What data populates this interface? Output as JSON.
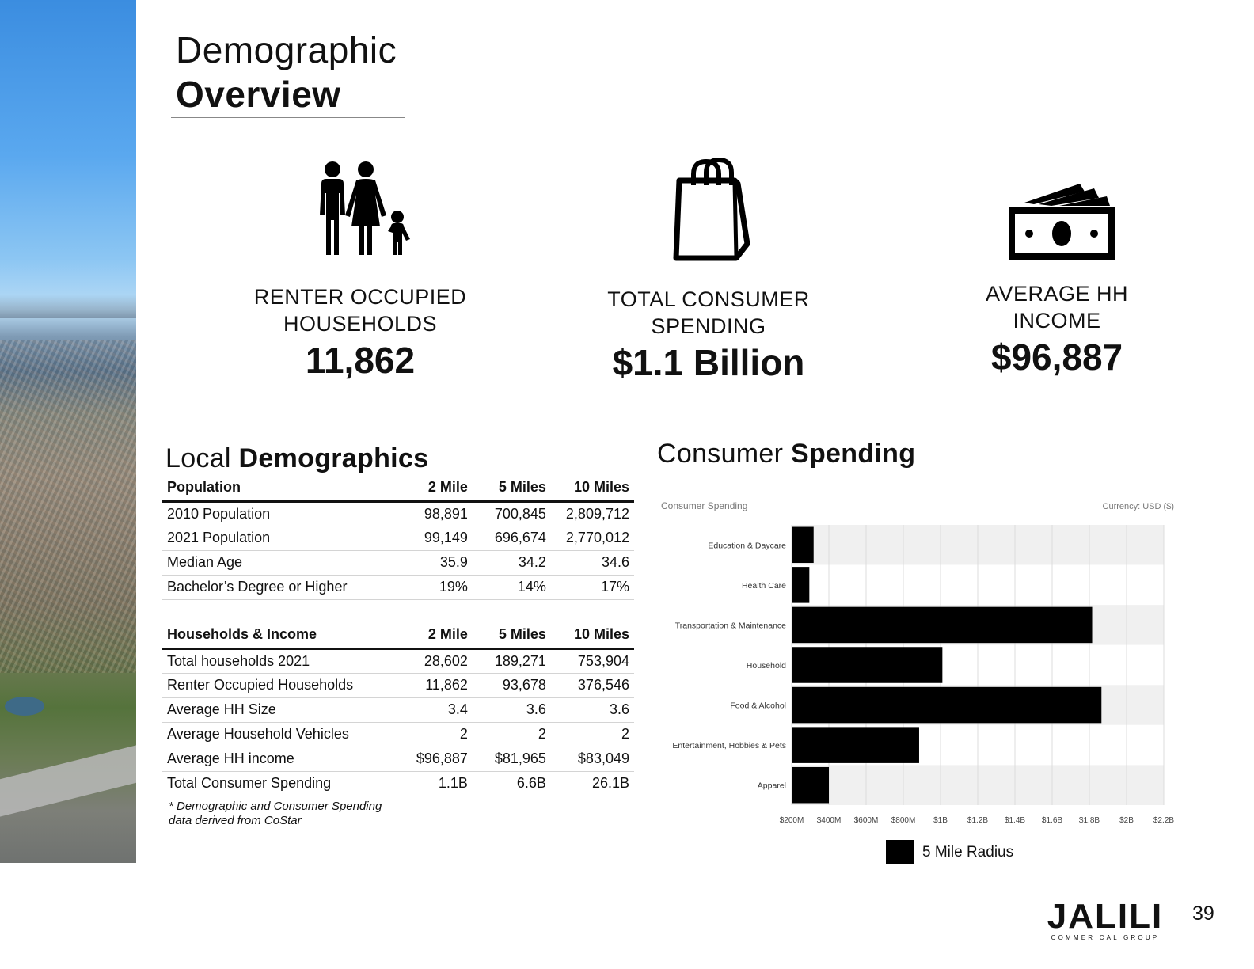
{
  "header": {
    "title_light": "Demographic",
    "title_bold": "Overview"
  },
  "stats": [
    {
      "label_line1": "RENTER OCCUPIED",
      "label_line2": "HOUSEHOLDS",
      "value": "11,862",
      "icon": "family-icon"
    },
    {
      "label_line1": "TOTAL CONSUMER",
      "label_line2": "SPENDING",
      "value": "$1.1 Billion",
      "icon": "shopping-bag-icon"
    },
    {
      "label_line1": "AVERAGE HH",
      "label_line2": "INCOME",
      "value": "$96,887",
      "icon": "cash-icon"
    }
  ],
  "local_demographics": {
    "title_light": "Local",
    "title_bold": "Demographics",
    "population_table": {
      "headers": [
        "Population",
        "2 Mile",
        "5 Miles",
        "10 Miles"
      ],
      "rows": [
        [
          "2010 Population",
          "98,891",
          "700,845",
          "2,809,712"
        ],
        [
          "2021 Population",
          "99,149",
          "696,674",
          "2,770,012"
        ],
        [
          "Median Age",
          "35.9",
          "34.2",
          "34.6"
        ],
        [
          "Bachelor’s Degree or Higher",
          "19%",
          "14%",
          "17%"
        ]
      ]
    },
    "households_table": {
      "headers": [
        "Households & Income",
        "2 Mile",
        "5 Miles",
        "10 Miles"
      ],
      "rows": [
        [
          "Total households 2021",
          "28,602",
          "189,271",
          "753,904"
        ],
        [
          "Renter Occupied Households",
          "11,862",
          "93,678",
          "376,546"
        ],
        [
          "Average HH Size",
          "3.4",
          "3.6",
          "3.6"
        ],
        [
          "Average Household Vehicles",
          "2",
          "2",
          "2"
        ],
        [
          "Average HH income",
          "$96,887",
          "$81,965",
          "$83,049"
        ],
        [
          "Total Consumer Spending",
          "1.1B",
          "6.6B",
          "26.1B"
        ]
      ]
    },
    "footnote_line1": "* Demographic and Consumer Spending",
    "footnote_line2": "data derived from CoStar"
  },
  "consumer_spending": {
    "title_light": "Consumer",
    "title_bold": "Spending"
  },
  "chart_data": {
    "type": "bar",
    "orientation": "horizontal",
    "title": "Consumer Spending",
    "currency_note": "Currency: USD ($)",
    "categories": [
      "Education & Daycare",
      "Health Care",
      "Transportation & Maintenance",
      "Household",
      "Food & Alcohol",
      "Entertainment, Hobbies & Pets",
      "Apparel"
    ],
    "series": [
      {
        "name": "5 Mile Radius",
        "values_millions": [
          318,
          295,
          1815,
          1010,
          1865,
          885,
          400
        ],
        "color": "#000000"
      }
    ],
    "x_ticks": [
      "$200M",
      "$400M",
      "$600M",
      "$800M",
      "$1B",
      "$1.2B",
      "$1.4B",
      "$1.6B",
      "$1.8B",
      "$2B",
      "$2.2B"
    ],
    "xlim_millions": [
      200,
      2200
    ],
    "grid": true,
    "legend_position": "bottom"
  },
  "branding": {
    "logo_word": "JALILI",
    "logo_sub": "COMMERICAL GROUP",
    "page_number": "39"
  }
}
